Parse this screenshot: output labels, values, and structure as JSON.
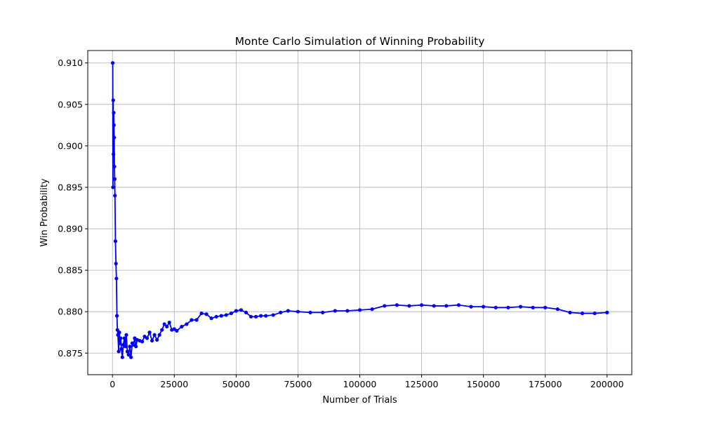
{
  "chart_data": {
    "type": "line",
    "title": "Monte Carlo Simulation of Winning Probability",
    "xlabel": "Number of Trials",
    "ylabel": "Win Probability",
    "xlim": [
      -10000,
      210000
    ],
    "ylim": [
      0.8724,
      0.9115
    ],
    "xticks": [
      0,
      25000,
      50000,
      75000,
      100000,
      125000,
      150000,
      175000,
      200000
    ],
    "xtick_labels": [
      "0",
      "25000",
      "50000",
      "75000",
      "100000",
      "125000",
      "150000",
      "175000",
      "200000"
    ],
    "yticks": [
      0.875,
      0.88,
      0.885,
      0.89,
      0.895,
      0.9,
      0.905,
      0.91
    ],
    "ytick_labels": [
      "0.875",
      "0.880",
      "0.885",
      "0.890",
      "0.895",
      "0.900",
      "0.905",
      "0.910"
    ],
    "grid": true,
    "legend": "none",
    "line_color": "#0000ff",
    "marker": "circle",
    "series": [
      {
        "x": [
          100,
          200,
          300,
          400,
          500,
          600,
          700,
          800,
          900,
          1000,
          1200,
          1400,
          1600,
          1800,
          2000,
          2200,
          2500,
          2800,
          3000,
          3300,
          3600,
          4000,
          4400,
          4800,
          5200,
          5600,
          6000,
          6500,
          7000,
          7500,
          8000,
          8500,
          9000,
          9500,
          10000,
          11000,
          12000,
          13000,
          14000,
          15000,
          16000,
          17000,
          18000,
          19000,
          20000,
          21000,
          22000,
          23000,
          24000,
          25000,
          26000,
          28000,
          30000,
          32000,
          34000,
          36000,
          38000,
          40000,
          42000,
          44000,
          46000,
          48000,
          50000,
          52000,
          54000,
          56000,
          58000,
          60000,
          62000,
          65000,
          68000,
          71000,
          75000,
          80000,
          85000,
          90000,
          95000,
          100000,
          105000,
          110000,
          115000,
          120000,
          125000,
          130000,
          135000,
          140000,
          145000,
          150000,
          155000,
          160000,
          165000,
          170000,
          175000,
          180000,
          185000,
          190000,
          195000,
          200000
        ],
        "values": [
          0.91,
          0.895,
          0.9055,
          0.899,
          0.904,
          0.9025,
          0.901,
          0.8975,
          0.896,
          0.894,
          0.8885,
          0.8858,
          0.884,
          0.8795,
          0.8778,
          0.8772,
          0.8752,
          0.8775,
          0.8762,
          0.8768,
          0.8755,
          0.8745,
          0.876,
          0.8768,
          0.8758,
          0.8772,
          0.8752,
          0.8748,
          0.8758,
          0.8745,
          0.8762,
          0.876,
          0.8768,
          0.8758,
          0.8766,
          0.8765,
          0.8764,
          0.877,
          0.8768,
          0.8775,
          0.8765,
          0.8772,
          0.8766,
          0.8772,
          0.8778,
          0.8785,
          0.8782,
          0.8787,
          0.8778,
          0.8779,
          0.8777,
          0.8782,
          0.8785,
          0.879,
          0.879,
          0.8798,
          0.8797,
          0.8792,
          0.8794,
          0.8795,
          0.8796,
          0.8798,
          0.8801,
          0.8802,
          0.8799,
          0.8794,
          0.8794,
          0.8795,
          0.8795,
          0.8796,
          0.8799,
          0.8801,
          0.88,
          0.8799,
          0.8799,
          0.8801,
          0.8801,
          0.8802,
          0.8803,
          0.8807,
          0.8808,
          0.8807,
          0.8808,
          0.8807,
          0.8807,
          0.8808,
          0.8806,
          0.8806,
          0.8805,
          0.8805,
          0.8806,
          0.8805,
          0.8805,
          0.8803,
          0.8799,
          0.8798,
          0.8798,
          0.8799
        ]
      }
    ]
  }
}
